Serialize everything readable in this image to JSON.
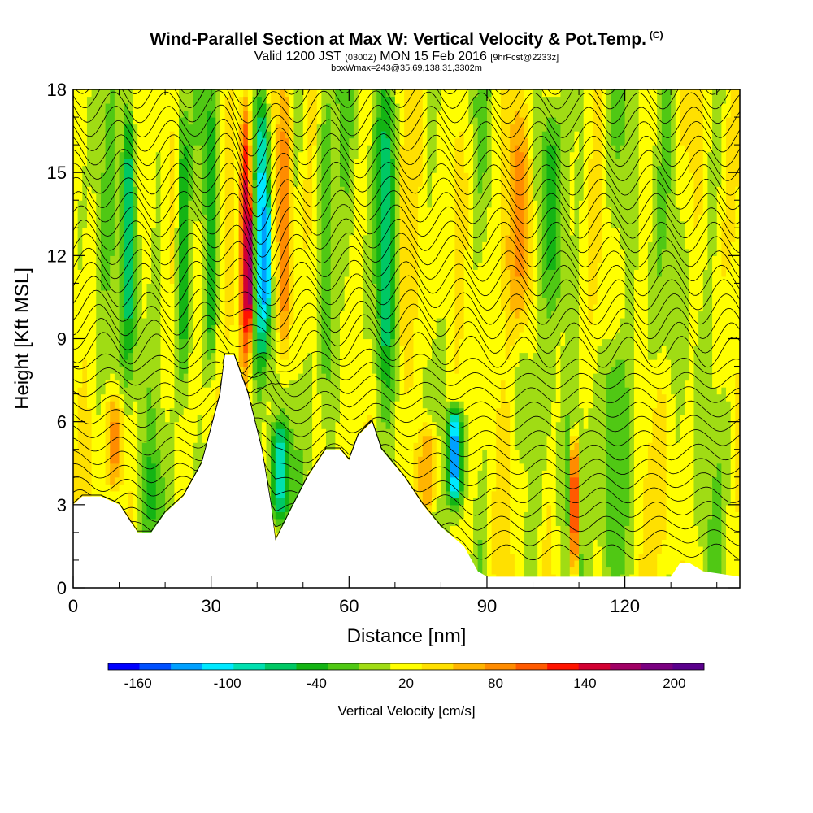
{
  "header": {
    "title": "Wind-Parallel Section at Max W: Vertical Velocity & Pot.Temp.",
    "copyright": "(C)",
    "valid_prefix": "Valid 1200 JST",
    "valid_utc": "(0300Z)",
    "valid_date": "MON 15 Feb 2016",
    "forecast": "[9hrFcst@2233z]",
    "box_info": "boxWmax=243@35.69,138.31,3302m"
  },
  "chart_data": {
    "type": "heatmap",
    "xlabel": "Distance [nm]",
    "ylabel": "Height [Kft MSL]",
    "xlim": [
      0,
      145
    ],
    "ylim": [
      0,
      18
    ],
    "x_ticks": [
      "0",
      "30",
      "60",
      "90",
      "120"
    ],
    "x_tick_values": [
      0,
      30,
      60,
      90,
      120
    ],
    "y_ticks": [
      "0",
      "3",
      "6",
      "9",
      "12",
      "15",
      "18"
    ],
    "y_tick_values": [
      0,
      3,
      6,
      9,
      12,
      15,
      18
    ],
    "colorbar": {
      "title": "Vertical Velocity [cm/s]",
      "labels": [
        "-160",
        "-100",
        "-40",
        "20",
        "80",
        "140",
        "200"
      ],
      "label_values": [
        -160,
        -100,
        -40,
        20,
        80,
        140,
        200
      ],
      "range": [
        -180,
        220
      ],
      "colors": [
        "#0000ff",
        "#0050ff",
        "#00a0ff",
        "#00e8ff",
        "#00e0b0",
        "#00c864",
        "#14b414",
        "#50c814",
        "#a0dc14",
        "#ffff00",
        "#ffe000",
        "#ffb400",
        "#ff8c00",
        "#ff5a00",
        "#ff1400",
        "#d20032",
        "#a00064",
        "#7a0080",
        "#5a008c"
      ]
    },
    "terrain_kft": [
      [
        0,
        3.0
      ],
      [
        2,
        3.3
      ],
      [
        6,
        3.3
      ],
      [
        10,
        3.0
      ],
      [
        14,
        2.0
      ],
      [
        17,
        2.0
      ],
      [
        20,
        2.7
      ],
      [
        24,
        3.3
      ],
      [
        28,
        4.5
      ],
      [
        32,
        7.0
      ],
      [
        33,
        8.4
      ],
      [
        35,
        8.4
      ],
      [
        38,
        7.0
      ],
      [
        41,
        5.0
      ],
      [
        43,
        3.0
      ],
      [
        44,
        1.7
      ],
      [
        47,
        2.7
      ],
      [
        51,
        4.0
      ],
      [
        55,
        5.0
      ],
      [
        58,
        5.0
      ],
      [
        60,
        4.6
      ],
      [
        62,
        5.5
      ],
      [
        65,
        6.0
      ],
      [
        67,
        5.0
      ],
      [
        72,
        4.0
      ],
      [
        76,
        3.0
      ],
      [
        80,
        2.2
      ],
      [
        85,
        1.5
      ],
      [
        88,
        0.6
      ],
      [
        90,
        0.4
      ],
      [
        130,
        0.4
      ],
      [
        132,
        0.9
      ],
      [
        134,
        0.9
      ],
      [
        137,
        0.6
      ],
      [
        145,
        0.4
      ]
    ],
    "features": [
      {
        "x": 37.5,
        "w": 1.4,
        "y0": 7.5,
        "y1": 18,
        "value": 140
      },
      {
        "x": 38.5,
        "w": 0.8,
        "y0": 9.5,
        "y1": 14,
        "value": 200
      },
      {
        "x": 41.0,
        "w": 1.6,
        "y0": 8,
        "y1": 18,
        "value": -110
      },
      {
        "x": 42.0,
        "w": 0.8,
        "y0": 10,
        "y1": 14,
        "value": -150
      },
      {
        "x": 46.0,
        "w": 1.6,
        "y0": 8,
        "y1": 18,
        "value": 90
      },
      {
        "x": 45.0,
        "w": 2.0,
        "y0": 2.5,
        "y1": 6,
        "value": -90
      },
      {
        "x": 83.0,
        "w": 1.6,
        "y0": 3.0,
        "y1": 6.5,
        "value": -140
      },
      {
        "x": 77.0,
        "w": 2.5,
        "y0": 2.5,
        "y1": 6,
        "value": 70
      },
      {
        "x": 109.0,
        "w": 0.8,
        "y0": 0.5,
        "y1": 5.5,
        "value": 150
      },
      {
        "x": 97.0,
        "w": 3.5,
        "y0": 9,
        "y1": 18,
        "value": 80
      },
      {
        "x": 104.0,
        "w": 3.0,
        "y0": 10,
        "y1": 18,
        "value": -40
      },
      {
        "x": 9.0,
        "w": 1.8,
        "y0": 3.5,
        "y1": 7,
        "value": 80
      },
      {
        "x": 12.0,
        "w": 1.5,
        "y0": 8,
        "y1": 18,
        "value": -70
      },
      {
        "x": 24.0,
        "w": 1.5,
        "y0": 7,
        "y1": 18,
        "value": -50
      },
      {
        "x": 30.0,
        "w": 1.3,
        "y0": 8,
        "y1": 18,
        "value": -60
      },
      {
        "x": 34.0,
        "w": 1.3,
        "y0": 8.5,
        "y1": 18,
        "value": 50
      },
      {
        "x": 55.0,
        "w": 2.0,
        "y0": 6,
        "y1": 18,
        "value": -30
      },
      {
        "x": 68.0,
        "w": 2.0,
        "y0": 7,
        "y1": 18,
        "value": -70
      },
      {
        "x": 73.0,
        "w": 2.2,
        "y0": 6,
        "y1": 18,
        "value": 50
      },
      {
        "x": 17.0,
        "w": 2.0,
        "y0": 2,
        "y1": 5,
        "value": -40
      },
      {
        "x": 118.0,
        "w": 4.0,
        "y0": 0.5,
        "y1": 9,
        "value": -30
      },
      {
        "x": 128.0,
        "w": 3.0,
        "y0": 0.5,
        "y1": 8,
        "value": 40
      }
    ]
  }
}
